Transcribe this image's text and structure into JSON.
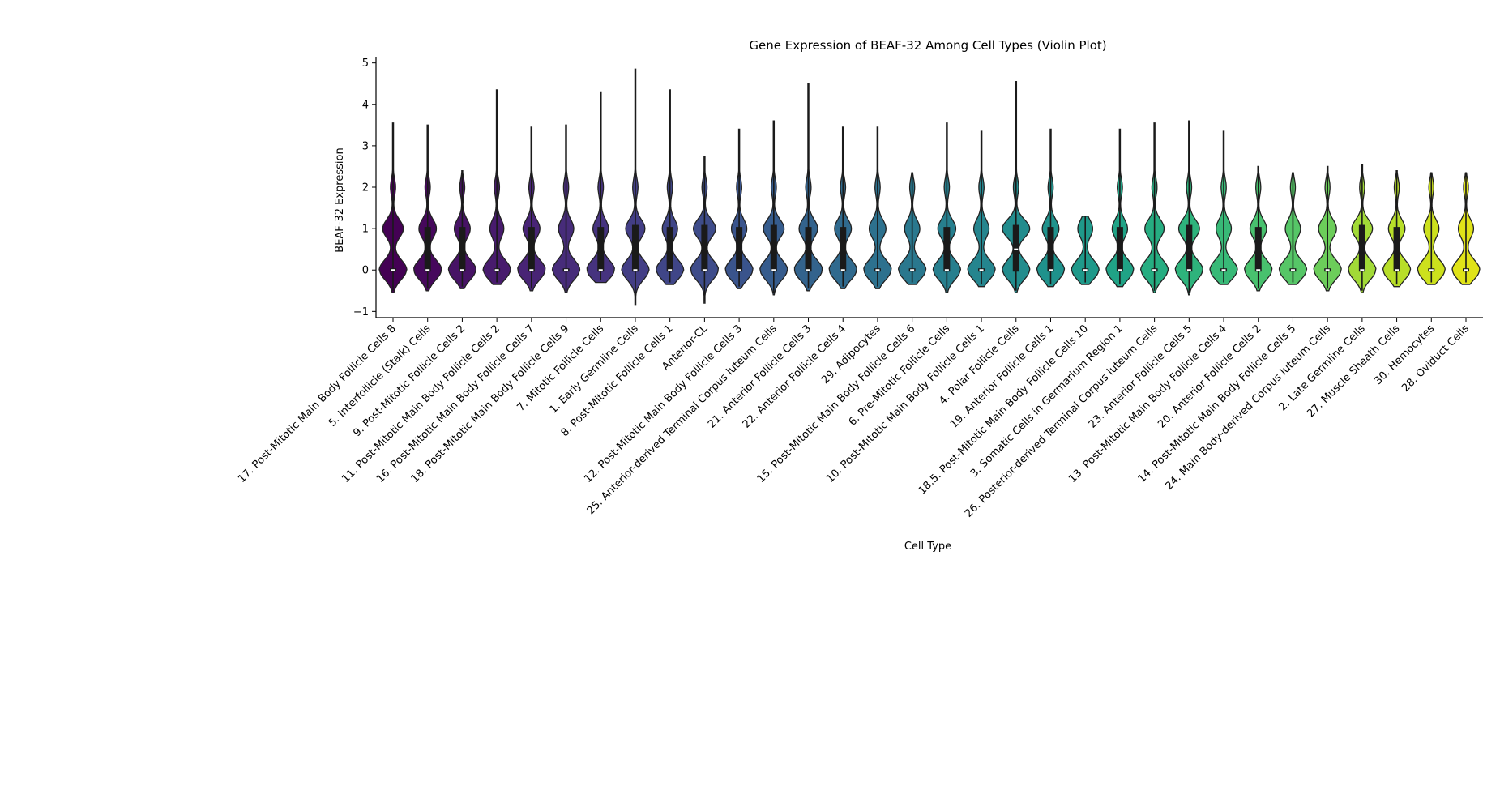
{
  "chart_data": {
    "type": "violin",
    "title": "Gene Expression of BEAF-32 Among Cell Types (Violin Plot)",
    "xlabel": "Cell Type",
    "ylabel": "BEAF-32 Expression",
    "ylim": [
      -1.15,
      5.15
    ],
    "yticks": [
      -1,
      0,
      1,
      2,
      3,
      4,
      5
    ],
    "ytick_labels": [
      "−1",
      "0",
      "1",
      "2",
      "3",
      "4",
      "5"
    ],
    "grid": false,
    "colormap": "viridis",
    "categories": [
      {
        "label": "17. Post-Mitotic Main Body Follicle Cells 8",
        "color": "#440154",
        "min": -0.55,
        "max": 3.55,
        "q1": 0.0,
        "median": 0.0,
        "q3": 0.0,
        "bulk": 0.75
      },
      {
        "label": "5. Interfollicle (Stalk) Cells",
        "color": "#46085c",
        "min": -0.5,
        "max": 3.5,
        "q1": 0.0,
        "median": 0.0,
        "q3": 1.0,
        "bulk": 0.62
      },
      {
        "label": "9. Post-Mitotic Follicle Cells 2",
        "color": "#471365",
        "min": -0.45,
        "max": 2.4,
        "q1": 0.0,
        "median": 0.0,
        "q3": 1.0,
        "bulk": 0.58
      },
      {
        "label": "11. Post-Mitotic Main Body Follicle Cells 2",
        "color": "#481b6d",
        "min": -0.35,
        "max": 4.35,
        "q1": 0.0,
        "median": 0.0,
        "q3": 0.0,
        "bulk": 0.5
      },
      {
        "label": "16. Post-Mitotic Main Body Follicle Cells 7",
        "color": "#482475",
        "min": -0.5,
        "max": 3.45,
        "q1": 0.0,
        "median": 0.0,
        "q3": 1.0,
        "bulk": 0.6
      },
      {
        "label": "18. Post-Mitotic Main Body Follicle Cells 9",
        "color": "#472c7a",
        "min": -0.55,
        "max": 3.5,
        "q1": 0.0,
        "median": 0.0,
        "q3": 0.0,
        "bulk": 0.55
      },
      {
        "label": "7. Mitotic Follicle Cells",
        "color": "#46337f",
        "min": -0.3,
        "max": 4.3,
        "q1": 0.0,
        "median": 0.0,
        "q3": 1.0,
        "bulk": 0.55
      },
      {
        "label": "1. Early Germline Cells",
        "color": "#433e85",
        "min": -0.85,
        "max": 4.85,
        "q1": 0.0,
        "median": 0.0,
        "q3": 1.05,
        "bulk": 0.7
      },
      {
        "label": "8. Post-Mitotic Follicle Cells 1",
        "color": "#404688",
        "min": -0.35,
        "max": 4.35,
        "q1": 0.0,
        "median": 0.0,
        "q3": 1.0,
        "bulk": 0.55
      },
      {
        "label": "Anterior-CL",
        "color": "#3e4c8a",
        "min": -0.8,
        "max": 2.75,
        "q1": 0.0,
        "median": 0.0,
        "q3": 1.05,
        "bulk": 0.8
      },
      {
        "label": "12. Post-Mitotic Main Body Follicle Cells 3",
        "color": "#3a548c",
        "min": -0.45,
        "max": 3.4,
        "q1": 0.0,
        "median": 0.0,
        "q3": 1.0,
        "bulk": 0.55
      },
      {
        "label": "25. Anterior-derived Terminal Corpus luteum Cells",
        "color": "#365c8d",
        "min": -0.6,
        "max": 3.6,
        "q1": 0.0,
        "median": 0.0,
        "q3": 1.05,
        "bulk": 0.75
      },
      {
        "label": "21. Anterior Follicle Cells 3",
        "color": "#33638d",
        "min": -0.5,
        "max": 4.5,
        "q1": 0.0,
        "median": 0.0,
        "q3": 1.0,
        "bulk": 0.65
      },
      {
        "label": "22. Anterior Follicle Cells 4",
        "color": "#306a8e",
        "min": -0.45,
        "max": 3.45,
        "q1": 0.0,
        "median": 0.0,
        "q3": 1.0,
        "bulk": 0.6
      },
      {
        "label": "29. Adipocytes",
        "color": "#2d718e",
        "min": -0.45,
        "max": 3.45,
        "q1": 0.0,
        "median": 0.0,
        "q3": 0.0,
        "bulk": 0.6
      },
      {
        "label": "15. Post-Mitotic Main Body Follicle Cells 6",
        "color": "#2a788e",
        "min": -0.35,
        "max": 2.35,
        "q1": 0.0,
        "median": 0.0,
        "q3": 0.0,
        "bulk": 0.55
      },
      {
        "label": "6. Pre-Mitotic Follicle Cells",
        "color": "#277f8e",
        "min": -0.55,
        "max": 3.55,
        "q1": 0.0,
        "median": 0.0,
        "q3": 1.0,
        "bulk": 0.65
      },
      {
        "label": "10. Post-Mitotic Main Body Follicle Cells 1",
        "color": "#25858e",
        "min": -0.4,
        "max": 3.35,
        "q1": 0.0,
        "median": 0.0,
        "q3": 0.0,
        "bulk": 0.55
      },
      {
        "label": "4. Polar Follicle Cells",
        "color": "#228c8d",
        "min": -0.55,
        "max": 4.55,
        "q1": 0.0,
        "median": 0.5,
        "q3": 1.05,
        "bulk": 1.0
      },
      {
        "label": "19. Anterior Follicle Cells 1",
        "color": "#1f928c",
        "min": -0.4,
        "max": 3.4,
        "q1": 0.0,
        "median": 0.0,
        "q3": 1.0,
        "bulk": 0.6
      },
      {
        "label": "18.5. Post-Mitotic Main Body Follicle Cells 10",
        "color": "#1f998a",
        "min": -0.35,
        "max": 1.3,
        "q1": 0.0,
        "median": 0.0,
        "q3": 0.0,
        "bulk": 0.55
      },
      {
        "label": "3. Somatic Cells in Germarium Region 1",
        "color": "#20a386",
        "min": -0.4,
        "max": 3.4,
        "q1": 0.0,
        "median": 0.0,
        "q3": 1.0,
        "bulk": 0.55
      },
      {
        "label": "26. Posterior-derived Terminal Corpus luteum Cells",
        "color": "#26ad81",
        "min": -0.55,
        "max": 3.55,
        "q1": 0.0,
        "median": 0.0,
        "q3": 0.0,
        "bulk": 0.7
      },
      {
        "label": "23. Anterior Follicle Cells 5",
        "color": "#2eb37c",
        "min": -0.6,
        "max": 3.6,
        "q1": 0.0,
        "median": 0.0,
        "q3": 1.05,
        "bulk": 0.75
      },
      {
        "label": "13. Post-Mitotic Main Body Follicle Cells 4",
        "color": "#38b977",
        "min": -0.35,
        "max": 3.35,
        "q1": 0.0,
        "median": 0.0,
        "q3": 0.0,
        "bulk": 0.55
      },
      {
        "label": "20. Anterior Follicle Cells 2",
        "color": "#48c16e",
        "min": -0.5,
        "max": 2.5,
        "q1": 0.0,
        "median": 0.0,
        "q3": 1.0,
        "bulk": 0.6
      },
      {
        "label": "14. Post-Mitotic Main Body Follicle Cells 5",
        "color": "#56c667",
        "min": -0.35,
        "max": 2.35,
        "q1": 0.0,
        "median": 0.0,
        "q3": 0.0,
        "bulk": 0.55
      },
      {
        "label": "24. Main Body-derived Corpus luteum Cells",
        "color": "#6ccd5a",
        "min": -0.5,
        "max": 2.5,
        "q1": 0.0,
        "median": 0.0,
        "q3": 0.0,
        "bulk": 0.65
      },
      {
        "label": "2. Late Germline Cells",
        "color": "#a2da37",
        "min": -0.55,
        "max": 2.55,
        "q1": 0.0,
        "median": 0.0,
        "q3": 1.05,
        "bulk": 0.75
      },
      {
        "label": "27. Muscle Sheath Cells",
        "color": "#b8de29",
        "min": -0.4,
        "max": 2.4,
        "q1": 0.0,
        "median": 0.0,
        "q3": 1.0,
        "bulk": 0.6
      },
      {
        "label": "30. Hemocytes",
        "color": "#cde11d",
        "min": -0.35,
        "max": 2.35,
        "q1": 0.0,
        "median": 0.0,
        "q3": 0.0,
        "bulk": 0.55
      },
      {
        "label": "28. Oviduct Cells",
        "color": "#e0e318",
        "min": -0.35,
        "max": 2.35,
        "q1": 0.0,
        "median": 0.0,
        "q3": 0.0,
        "bulk": 0.55
      }
    ]
  }
}
